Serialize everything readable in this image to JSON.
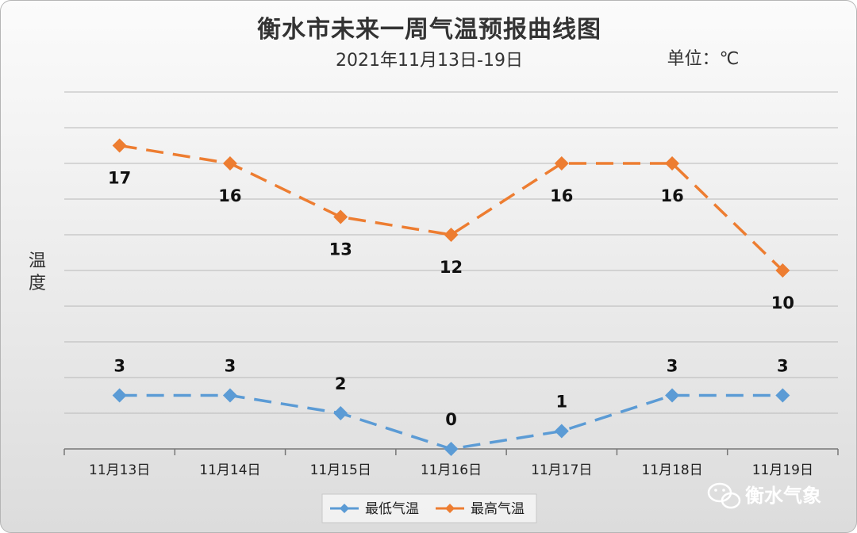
{
  "chart_data": {
    "type": "line",
    "title": "衡水市未来一周气温预报曲线图",
    "subtitle": "2021年11月13日-19日",
    "unit_label": "单位：℃",
    "ylabel": "温度",
    "categories": [
      "11月13日",
      "11月14日",
      "11月15日",
      "11月16日",
      "11月17日",
      "11月18日",
      "11月19日"
    ],
    "series": [
      {
        "name": "最低气温",
        "values": [
          3,
          3,
          2,
          0,
          1,
          3,
          3
        ],
        "color": "#5b9bd5",
        "label_position": "above"
      },
      {
        "name": "最高气温",
        "values": [
          17,
          16,
          13,
          12,
          16,
          16,
          10
        ],
        "color": "#ed7d31",
        "label_position": "below"
      }
    ],
    "ylim": [
      0,
      20
    ],
    "grid": true,
    "legend": "bottom"
  },
  "watermark": {
    "text": "衡水气象",
    "icon": "wechat-icon"
  }
}
